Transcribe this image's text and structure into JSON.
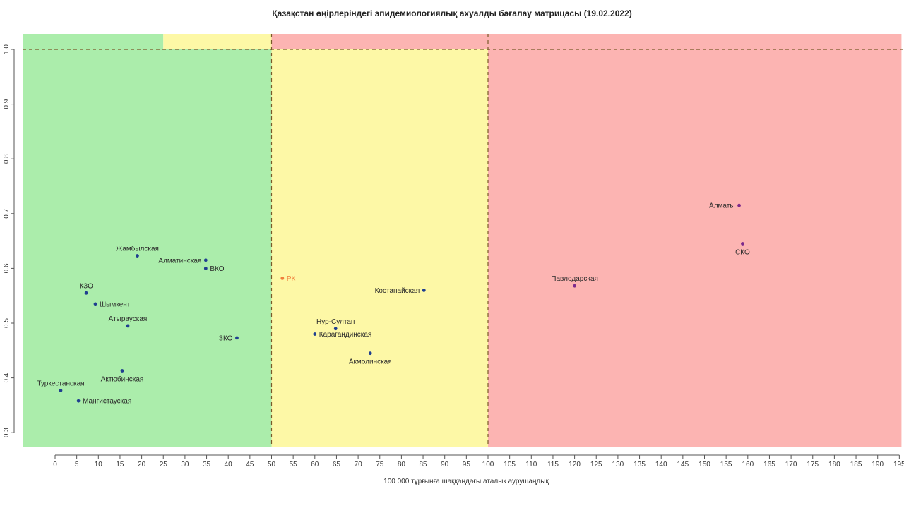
{
  "chart_data": {
    "type": "scatter",
    "title": "Қазақстан өңірлеріндегі эпидемиологиялық ахуалды бағалау матрицасы  (19.02.2022)",
    "xlabel": "100 000 тұрғынға шаққандағы аталық аурушаңдық",
    "ylabel": "",
    "xlim": [
      0,
      195
    ],
    "ylim": [
      0.3,
      1.0
    ],
    "x_ticks": [
      0,
      5,
      10,
      15,
      20,
      25,
      30,
      35,
      40,
      45,
      50,
      55,
      60,
      65,
      70,
      75,
      80,
      85,
      90,
      95,
      100,
      105,
      110,
      115,
      120,
      125,
      130,
      135,
      140,
      145,
      150,
      155,
      160,
      165,
      170,
      175,
      180,
      185,
      190,
      195
    ],
    "y_ticks": [
      0.3,
      0.4,
      0.5,
      0.6,
      0.7,
      0.8,
      0.9,
      1.0
    ],
    "zones": [
      {
        "name": "green",
        "x_from": -7.5,
        "x_to": 50,
        "color": "#abedab"
      },
      {
        "name": "yellow",
        "x_from": 50,
        "x_to": 100,
        "color": "#fdf8a6"
      },
      {
        "name": "red",
        "x_from": 100,
        "x_to": 195.5,
        "color": "#fcb4b2"
      }
    ],
    "top_band": [
      {
        "x_from": -7.5,
        "x_to": 25,
        "color": "#abedab"
      },
      {
        "x_from": 25,
        "x_to": 50,
        "color": "#fdf8a6"
      },
      {
        "x_from": 50,
        "x_to": 195.5,
        "color": "#fcb4b2"
      }
    ],
    "reference_lines": {
      "vertical": [
        50,
        100
      ],
      "horizontal": [
        1.0
      ]
    },
    "points": [
      {
        "label": "Жамбылская",
        "x": 19.0,
        "y": 0.623,
        "color": "#1f3f8f",
        "label_pos": "above"
      },
      {
        "label": "Алматинская",
        "x": 34.8,
        "y": 0.615,
        "color": "#1f3f8f",
        "label_pos": "left"
      },
      {
        "label": "ВКО",
        "x": 34.8,
        "y": 0.6,
        "color": "#1f3f8f",
        "label_pos": "right"
      },
      {
        "label": "КЗО",
        "x": 7.2,
        "y": 0.555,
        "color": "#1f3f8f",
        "label_pos": "above"
      },
      {
        "label": "Шымкент",
        "x": 9.3,
        "y": 0.535,
        "color": "#1f3f8f",
        "label_pos": "right"
      },
      {
        "label": "Атырауская",
        "x": 16.8,
        "y": 0.495,
        "color": "#1f3f8f",
        "label_pos": "above"
      },
      {
        "label": "ЗКО",
        "x": 42.0,
        "y": 0.473,
        "color": "#1f3f8f",
        "label_pos": "left"
      },
      {
        "label": "Актюбинская",
        "x": 15.5,
        "y": 0.413,
        "color": "#1f3f8f",
        "label_pos": "below"
      },
      {
        "label": "Туркестанская",
        "x": 1.3,
        "y": 0.377,
        "color": "#1f3f8f",
        "label_pos": "above"
      },
      {
        "label": "Мангистауская",
        "x": 5.4,
        "y": 0.358,
        "color": "#1f3f8f",
        "label_pos": "right"
      },
      {
        "label": "РК",
        "x": 52.5,
        "y": 0.582,
        "color": "#f07f3c",
        "label_pos": "right"
      },
      {
        "label": "Костанайская",
        "x": 85.2,
        "y": 0.56,
        "color": "#1f3f8f",
        "label_pos": "left"
      },
      {
        "label": "Нур-Султан",
        "x": 64.8,
        "y": 0.49,
        "color": "#1f3f8f",
        "label_pos": "above"
      },
      {
        "label": "Карагандинская",
        "x": 60.0,
        "y": 0.48,
        "color": "#1f3f8f",
        "label_pos": "right"
      },
      {
        "label": "Акмолинская",
        "x": 72.8,
        "y": 0.445,
        "color": "#1f3f8f",
        "label_pos": "below"
      },
      {
        "label": "Алматы",
        "x": 158.0,
        "y": 0.715,
        "color": "#7d2a8c",
        "label_pos": "left"
      },
      {
        "label": "СКО",
        "x": 158.8,
        "y": 0.645,
        "color": "#7d2a8c",
        "label_pos": "below"
      },
      {
        "label": "Павлодарская",
        "x": 120.0,
        "y": 0.568,
        "color": "#7d2a8c",
        "label_pos": "above"
      }
    ]
  }
}
